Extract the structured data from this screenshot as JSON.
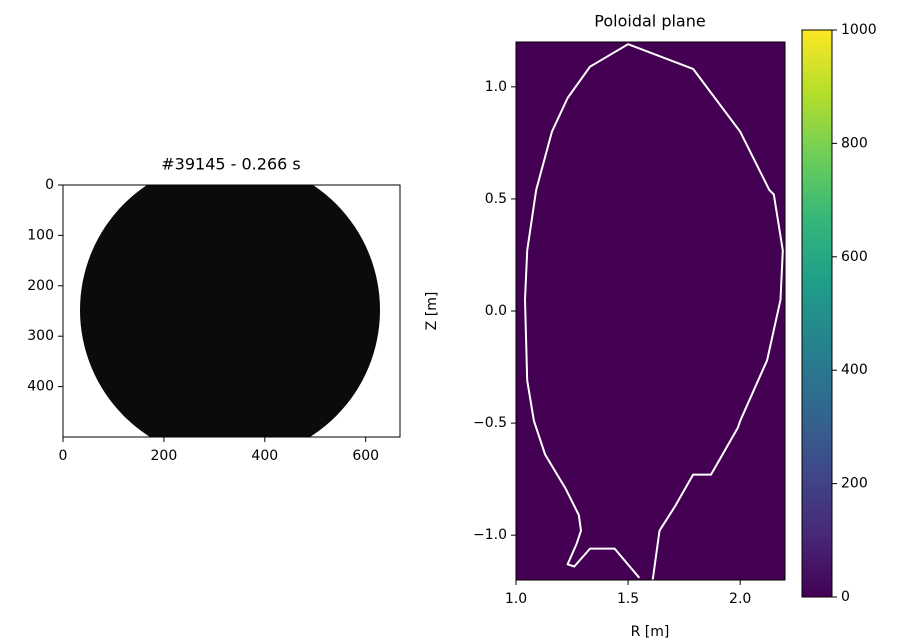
{
  "chart_data": [
    {
      "type": "image",
      "title": "#39145 - 0.266 s",
      "xlim": [
        0,
        668
      ],
      "ylim": [
        500,
        0
      ],
      "xticks": [
        0,
        200,
        400,
        600
      ],
      "yticks": [
        0,
        100,
        200,
        300,
        400
      ],
      "colormap": "gray"
    },
    {
      "type": "line",
      "title": "Poloidal plane",
      "x_label": "R [m]",
      "y_label": "Z [m]",
      "xlim": [
        1.0,
        2.2
      ],
      "ylim": [
        -1.2,
        1.2
      ],
      "xticks": [
        {
          "value": 1.0,
          "label": "1.0"
        },
        {
          "value": 1.5,
          "label": "1.5"
        },
        {
          "value": 2.0,
          "label": "2.0"
        }
      ],
      "yticks": [
        {
          "value": -1.0,
          "label": "−1.0"
        },
        {
          "value": -0.5,
          "label": "−0.5"
        },
        {
          "value": 0.0,
          "label": "0.0"
        },
        {
          "value": 0.5,
          "label": "0.5"
        },
        {
          "value": 1.0,
          "label": "1.0"
        }
      ],
      "background": "#440154",
      "series": [
        {
          "color": "#ffffff",
          "x": [
            1.61,
            1.64,
            1.71,
            1.79,
            1.87,
            1.99,
            2.0,
            2.12,
            2.18,
            2.19,
            2.15,
            2.13,
            2.0,
            1.79,
            1.5,
            1.33,
            1.23,
            1.16,
            1.09,
            1.05,
            1.04,
            1.05,
            1.08,
            1.13,
            1.22,
            1.28,
            1.29,
            1.27,
            1.23,
            1.26,
            1.33,
            1.44,
            1.55
          ],
          "values": [
            -1.2,
            -0.98,
            -0.87,
            -0.73,
            -0.73,
            -0.52,
            -0.49,
            -0.22,
            0.05,
            0.27,
            0.52,
            0.54,
            0.8,
            1.08,
            1.19,
            1.09,
            0.95,
            0.8,
            0.54,
            0.27,
            0.05,
            -0.31,
            -0.49,
            -0.64,
            -0.79,
            -0.91,
            -0.98,
            -1.04,
            -1.13,
            -1.14,
            -1.06,
            -1.06,
            -1.19
          ]
        }
      ]
    },
    {
      "type": "colorbar",
      "ylim": [
        0,
        1000
      ],
      "yticks": [
        0,
        200,
        400,
        600,
        800,
        1000
      ],
      "colormap": "viridis"
    }
  ]
}
